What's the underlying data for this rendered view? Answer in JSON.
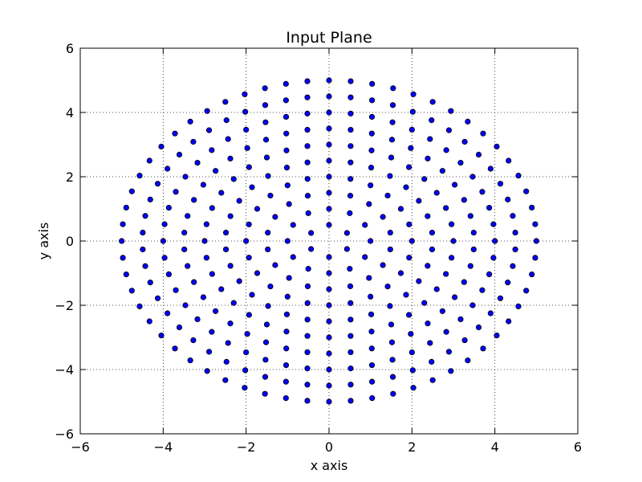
{
  "chart_data": {
    "type": "scatter",
    "title": "Input Plane",
    "xlabel": "x axis",
    "ylabel": "y axis",
    "xlim": [
      -6,
      6
    ],
    "ylim": [
      -6,
      6
    ],
    "xticks": [
      -6,
      -4,
      -2,
      0,
      2,
      4,
      6
    ],
    "yticks": [
      -6,
      -4,
      -2,
      0,
      2,
      4,
      6
    ],
    "xtick_labels": [
      "−6",
      "−4",
      "−2",
      "0",
      "2",
      "4",
      "6"
    ],
    "ytick_labels": [
      "−6",
      "−4",
      "−2",
      "0",
      "2",
      "4",
      "6"
    ],
    "grid": true,
    "marker_color": "#0000ff",
    "marker_edge_color": "#000000",
    "series": [
      {
        "pattern": "concentric-rings",
        "radii": [
          0.5,
          1.0,
          1.5,
          2.0,
          2.5,
          3.0,
          3.5,
          4.0,
          4.5,
          5.0
        ],
        "points_per_ring": [
          6,
          12,
          18,
          24,
          30,
          36,
          42,
          48,
          54,
          60
        ],
        "angle_offset_deg": [
          90,
          90,
          90,
          90,
          90,
          90,
          90,
          90,
          90,
          90
        ]
      }
    ]
  }
}
